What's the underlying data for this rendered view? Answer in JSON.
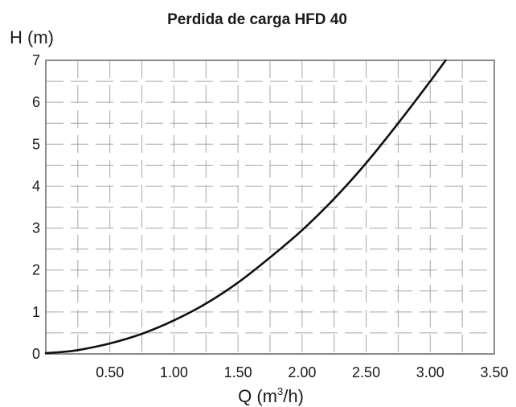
{
  "chart_data": {
    "type": "line",
    "title": "Perdida de carga HFD 40",
    "ylabel": "H (m)",
    "xlabel_prefix": "Q (m",
    "xlabel_sup": "3",
    "xlabel_suffix": "/h)",
    "xlim": [
      0,
      3.5
    ],
    "ylim": [
      0,
      7
    ],
    "x_ticks": [
      {
        "value": 0.5,
        "label": "0.50"
      },
      {
        "value": 1.0,
        "label": "1.00"
      },
      {
        "value": 1.5,
        "label": "1.50"
      },
      {
        "value": 2.0,
        "label": "2.00"
      },
      {
        "value": 2.5,
        "label": "2.50"
      },
      {
        "value": 3.0,
        "label": "3.00"
      },
      {
        "value": 3.5,
        "label": "3.50"
      }
    ],
    "y_ticks": [
      {
        "value": 0,
        "label": "0"
      },
      {
        "value": 1,
        "label": "1"
      },
      {
        "value": 2,
        "label": "2"
      },
      {
        "value": 3,
        "label": "3"
      },
      {
        "value": 4,
        "label": "4"
      },
      {
        "value": 5,
        "label": "5"
      },
      {
        "value": 6,
        "label": "6"
      },
      {
        "value": 7,
        "label": "7"
      }
    ],
    "grid": true,
    "legend": false,
    "series": [
      {
        "color": "#111111",
        "x": [
          0,
          0.1,
          0.25,
          0.5,
          0.75,
          1.0,
          1.25,
          1.5,
          1.75,
          2.0,
          2.25,
          2.5,
          2.75,
          3.0,
          3.12
        ],
        "y": [
          0.02,
          0.04,
          0.09,
          0.25,
          0.48,
          0.8,
          1.2,
          1.7,
          2.3,
          2.95,
          3.7,
          4.55,
          5.5,
          6.5,
          7.0
        ]
      }
    ]
  }
}
